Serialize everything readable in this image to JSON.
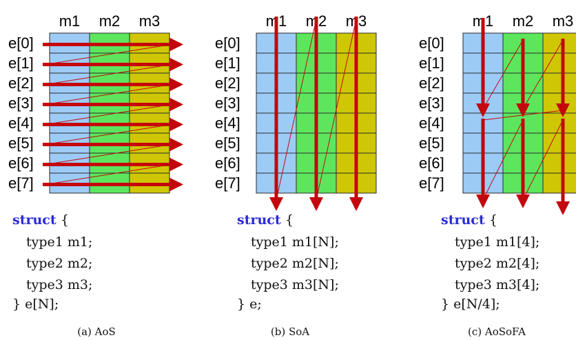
{
  "colors": {
    "m1": "#9ccbf5",
    "m2": "#5de65d",
    "m3": "#cfc705",
    "arrow": "#c4060d",
    "keyword": "#2a2ad6"
  },
  "panels": [
    {
      "id": "aos",
      "members": [
        "m1",
        "m2",
        "m3"
      ],
      "rows": [
        "e[0]",
        "e[1]",
        "e[2]",
        "e[3]",
        "e[4]",
        "e[5]",
        "e[6]",
        "e[7]"
      ],
      "code_keyword": "struct",
      "code_open": "{",
      "code_lines": [
        "type1 m1;",
        "type2 m2;",
        "type3 m3;"
      ],
      "code_close": "} e[N];",
      "caption": "(a) AoS"
    },
    {
      "id": "soa",
      "members": [
        "m1",
        "m2",
        "m3"
      ],
      "rows": [
        "e[0]",
        "e[1]",
        "e[2]",
        "e[3]",
        "e[4]",
        "e[5]",
        "e[6]",
        "e[7]"
      ],
      "code_keyword": "struct",
      "code_open": "{",
      "code_lines": [
        "type1 m1[N];",
        "type2 m2[N];",
        "type3 m3[N];"
      ],
      "code_close": "} e;",
      "caption": "(b) SoA"
    },
    {
      "id": "aosofa",
      "members": [
        "m1",
        "m2",
        "m3"
      ],
      "rows": [
        "e[0]",
        "e[1]",
        "e[2]",
        "e[3]",
        "e[4]",
        "e[5]",
        "e[6]",
        "e[7]"
      ],
      "code_keyword": "struct",
      "code_open": "{",
      "code_lines": [
        "type1 m1[4];",
        "type2 m2[4];",
        "type3 m3[4];"
      ],
      "code_close": "} e[N/4];",
      "caption": "(c) AoSoFA"
    }
  ]
}
